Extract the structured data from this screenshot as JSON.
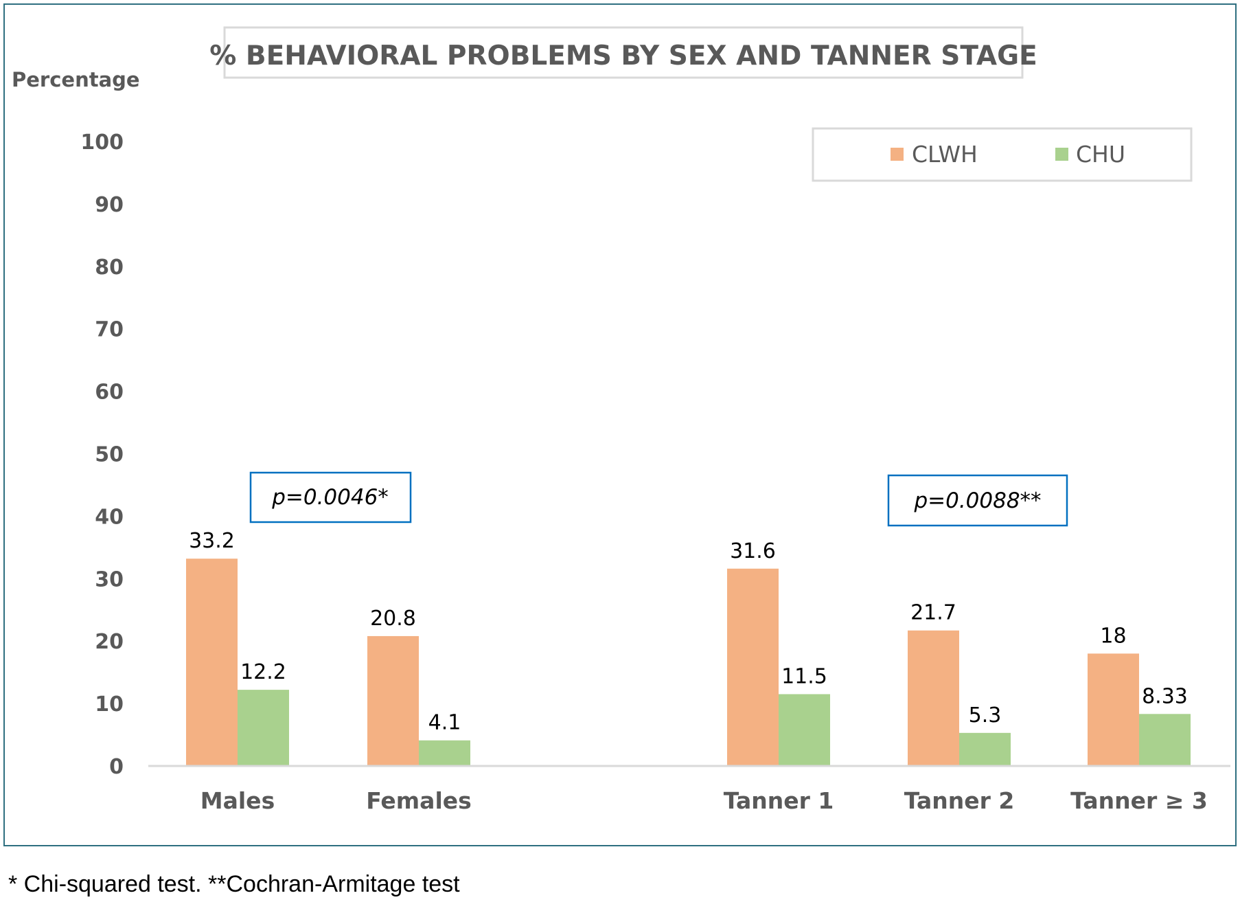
{
  "chart_data": {
    "type": "bar",
    "title": "% BEHAVIORAL PROBLEMS BY SEX AND TANNER STAGE",
    "ylabel": "Percentage",
    "xlabel": "",
    "ylim": [
      0,
      100
    ],
    "yticks": [
      "0",
      "10",
      "20",
      "30",
      "40",
      "50",
      "60",
      "70",
      "80",
      "90",
      "100"
    ],
    "categories": [
      "Males",
      "Females",
      "Tanner 1",
      "Tanner 2",
      "Tanner ≥ 3"
    ],
    "series": [
      {
        "name": "CLWH",
        "color": "#f4b183",
        "values": [
          33.2,
          20.8,
          31.6,
          21.7,
          18
        ],
        "labels": [
          "33.2",
          "20.8",
          "31.6",
          "21.7",
          "18"
        ]
      },
      {
        "name": "CHU",
        "color": "#a9d18e",
        "values": [
          12.2,
          4.1,
          11.5,
          5.3,
          8.33
        ],
        "labels": [
          "12.2",
          "4.1",
          "11.5",
          "5.3",
          "8.33"
        ]
      }
    ],
    "annotations": [
      "p=0.0046*",
      "p=0.0088**"
    ],
    "legend_position": "top-right",
    "grid": false
  },
  "footnote": "* Chi-squared test. **Cochran-Armitage test"
}
